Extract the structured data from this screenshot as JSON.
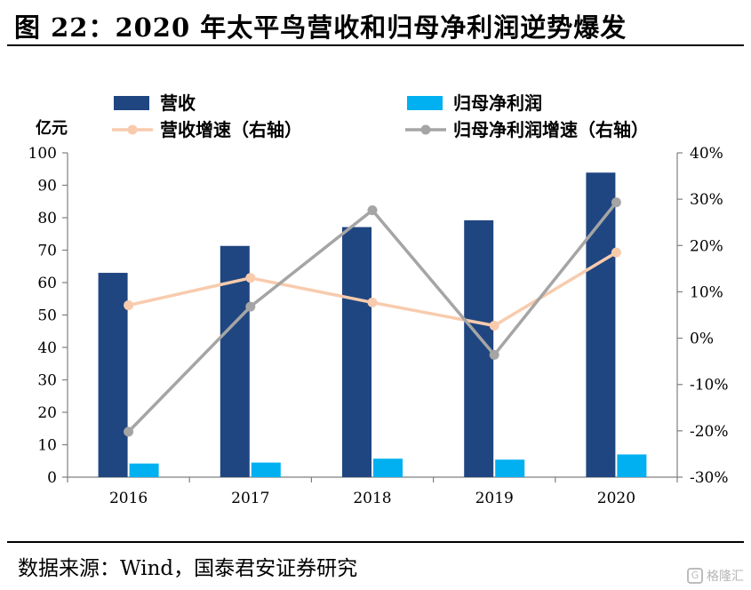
{
  "title": "图 22：2020 年太平鸟营收和归母净利润逆势爆发",
  "source": "数据来源：Wind，国泰君安证券研究",
  "watermark": {
    "text": "格隆汇",
    "icon": "gelonghui-logo-icon"
  },
  "chart_data": {
    "type": "bar",
    "categories": [
      "2016",
      "2017",
      "2018",
      "2019",
      "2020"
    ],
    "ylabel": "亿元",
    "ylim": [
      0,
      100
    ],
    "yticks": [
      0,
      10,
      20,
      30,
      40,
      50,
      60,
      70,
      80,
      90,
      100
    ],
    "y2lim": [
      -30,
      40
    ],
    "y2ticks": [
      -30,
      -20,
      -10,
      0,
      10,
      20,
      30,
      40
    ],
    "y2ticklabels": [
      "-30%",
      "-20%",
      "-10%",
      "0%",
      "10%",
      "20%",
      "30%",
      "40%"
    ],
    "legend_position": "top",
    "grid": false,
    "series": [
      {
        "name": "营收",
        "type": "bar",
        "axis": "left",
        "color": "#1f4680",
        "values": [
          63.0,
          71.3,
          77.1,
          79.2,
          93.9
        ]
      },
      {
        "name": "归母净利润",
        "type": "bar",
        "axis": "left",
        "color": "#00b0f0",
        "values": [
          4.2,
          4.5,
          5.7,
          5.4,
          7.0
        ]
      },
      {
        "name": "营收增速（右轴）",
        "type": "line",
        "axis": "right",
        "color": "#f8cbad",
        "values": [
          7.1,
          13.0,
          7.7,
          2.7,
          18.5
        ]
      },
      {
        "name": "归母净利润增速（右轴）",
        "type": "line",
        "axis": "right",
        "color": "#a5a5a5",
        "values": [
          -20.2,
          6.8,
          27.6,
          -3.6,
          29.3
        ]
      }
    ]
  }
}
